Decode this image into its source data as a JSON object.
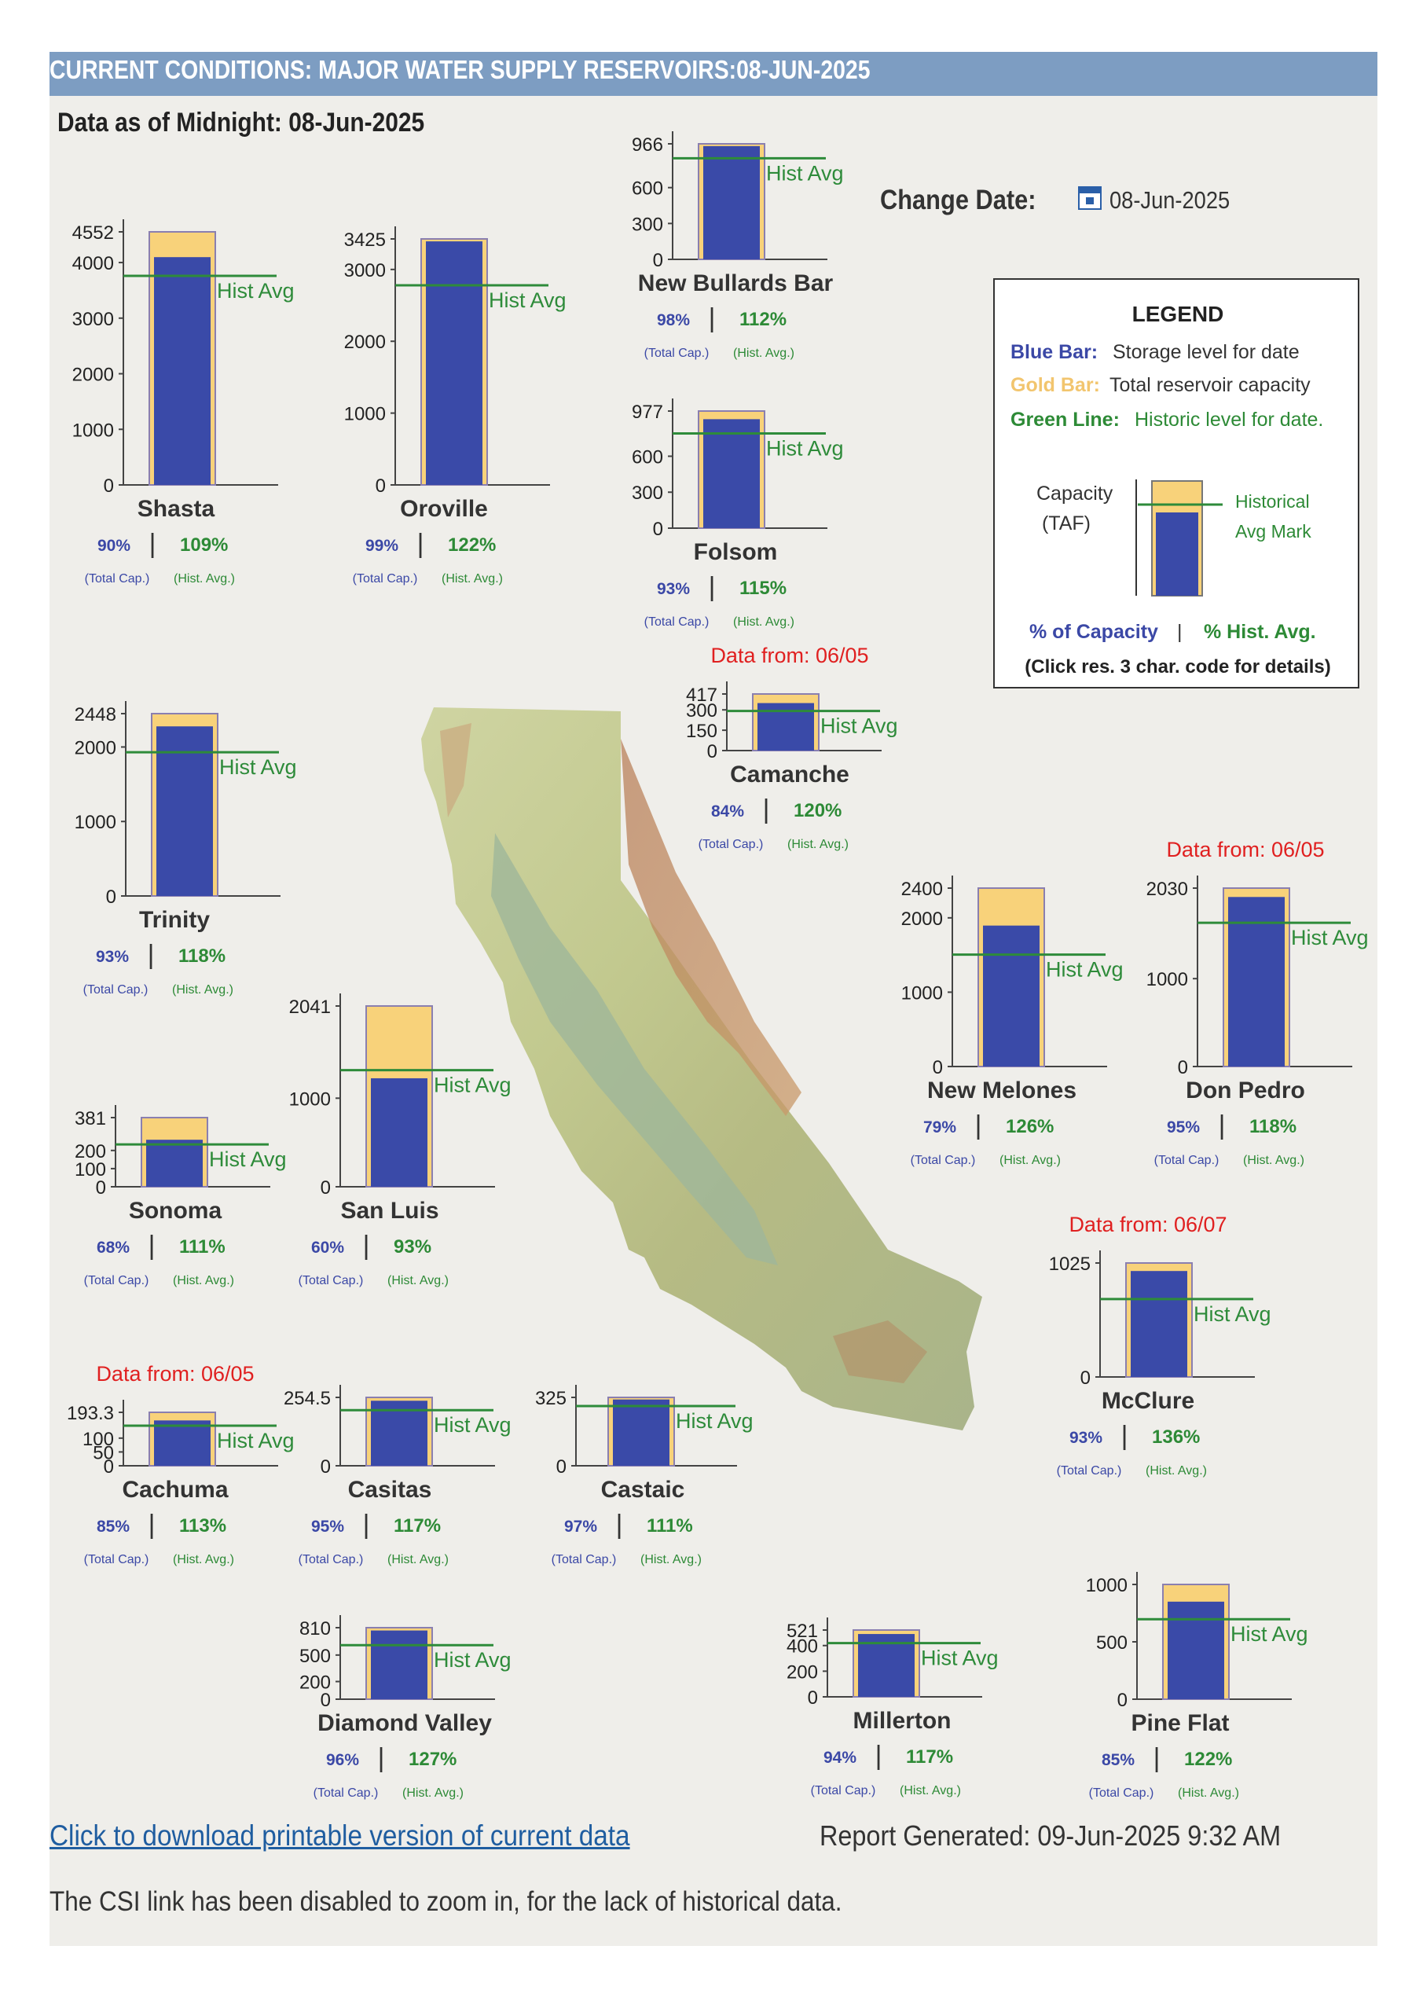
{
  "header": {
    "banner": "CURRENT CONDITIONS: MAJOR WATER SUPPLY RESERVOIRS:08-JUN-2025",
    "as_of": "Data as of Midnight: 08-Jun-2025",
    "change_date_label": "Change Date:",
    "change_date_value": "08-Jun-2025"
  },
  "colors": {
    "storage_bar": "#3a4aa8",
    "capacity_bar": "#f8d27a",
    "hist_line": "#2e8b3a",
    "capacity_pct": "#3b48a6",
    "hist_pct": "#2d8a36",
    "stale_note": "#e02020"
  },
  "legend": {
    "title": "LEGEND",
    "blue_key": "Blue Bar:",
    "blue_desc": "Storage level for date",
    "gold_key": "Gold Bar:",
    "gold_desc": "Total reservoir capacity",
    "green_key": "Green Line:",
    "green_desc": "Historic level for date.",
    "capacity_label": "Capacity",
    "taf_label": "(TAF)",
    "hist_mark_1": "Historical",
    "hist_mark_2": "Avg Mark",
    "pct_capacity": "% of Capacity",
    "sep": "|",
    "pct_hist": "% Hist. Avg.",
    "click_note": "(Click res. 3 char. code for details)"
  },
  "labels": {
    "hist_avg": "Hist Avg",
    "total_cap": "(Total Cap.)",
    "hist_avg_small": "(Hist. Avg.)",
    "sep": "|"
  },
  "chart_data": {
    "type": "bar",
    "units": "TAF",
    "series_meaning": {
      "storage": "Blue Bar",
      "capacity": "Gold Bar",
      "hist_avg": "Green Line"
    },
    "reservoirs": [
      {
        "name": "Shasta",
        "capacity": 4552,
        "storage": 4097,
        "hist_avg": 3760,
        "ticks": [
          0,
          1000,
          2000,
          3000,
          4000,
          4552
        ],
        "pct_cap": "90%",
        "pct_hist": "109%"
      },
      {
        "name": "Oroville",
        "capacity": 3425,
        "storage": 3391,
        "hist_avg": 2780,
        "ticks": [
          0,
          1000,
          2000,
          3000,
          3425
        ],
        "pct_cap": "99%",
        "pct_hist": "122%"
      },
      {
        "name": "New Bullards Bar",
        "capacity": 966,
        "storage": 947,
        "hist_avg": 845,
        "ticks": [
          0,
          300,
          600,
          966
        ],
        "pct_cap": "98%",
        "pct_hist": "112%"
      },
      {
        "name": "Folsom",
        "capacity": 977,
        "storage": 909,
        "hist_avg": 790,
        "ticks": [
          0,
          300,
          600,
          977
        ],
        "pct_cap": "93%",
        "pct_hist": "115%"
      },
      {
        "name": "Trinity",
        "capacity": 2448,
        "storage": 2277,
        "hist_avg": 1930,
        "ticks": [
          0,
          1000,
          2000,
          2448
        ],
        "pct_cap": "93%",
        "pct_hist": "118%"
      },
      {
        "name": "Camanche",
        "capacity": 417,
        "storage": 350,
        "hist_avg": 292,
        "ticks": [
          0,
          150,
          300,
          417
        ],
        "pct_cap": "84%",
        "pct_hist": "120%",
        "note": "Data from: 06/05"
      },
      {
        "name": "New Melones",
        "capacity": 2400,
        "storage": 1896,
        "hist_avg": 1505,
        "ticks": [
          0,
          1000,
          2000,
          2400
        ],
        "pct_cap": "79%",
        "pct_hist": "126%"
      },
      {
        "name": "Don Pedro",
        "capacity": 2030,
        "storage": 1929,
        "hist_avg": 1635,
        "ticks": [
          0,
          1000,
          2030
        ],
        "pct_cap": "95%",
        "pct_hist": "118%",
        "note": "Data from: 06/05"
      },
      {
        "name": "Sonoma",
        "capacity": 381,
        "storage": 259,
        "hist_avg": 233,
        "ticks": [
          0,
          100,
          200,
          381
        ],
        "pct_cap": "68%",
        "pct_hist": "111%"
      },
      {
        "name": "San Luis",
        "capacity": 2041,
        "storage": 1225,
        "hist_avg": 1317,
        "ticks": [
          0,
          1000,
          2041
        ],
        "pct_cap": "60%",
        "pct_hist": "93%"
      },
      {
        "name": "McClure",
        "capacity": 1025,
        "storage": 953,
        "hist_avg": 701,
        "ticks": [
          0,
          1025
        ],
        "pct_cap": "93%",
        "pct_hist": "136%",
        "note": "Data from: 06/07"
      },
      {
        "name": "Cachuma",
        "capacity": 193.3,
        "storage": 164,
        "hist_avg": 145,
        "ticks": [
          0,
          50,
          100,
          193.3
        ],
        "pct_cap": "85%",
        "pct_hist": "113%",
        "note": "Data from: 06/05"
      },
      {
        "name": "Casitas",
        "capacity": 254.5,
        "storage": 242,
        "hist_avg": 207,
        "ticks": [
          0,
          254.5
        ],
        "pct_cap": "95%",
        "pct_hist": "117%"
      },
      {
        "name": "Castaic",
        "capacity": 325,
        "storage": 315,
        "hist_avg": 284,
        "ticks": [
          0,
          325
        ],
        "pct_cap": "97%",
        "pct_hist": "111%"
      },
      {
        "name": "Diamond Valley",
        "capacity": 810,
        "storage": 778,
        "hist_avg": 612,
        "ticks": [
          0,
          200,
          500,
          810
        ],
        "pct_cap": "96%",
        "pct_hist": "127%"
      },
      {
        "name": "Millerton",
        "capacity": 521,
        "storage": 490,
        "hist_avg": 419,
        "ticks": [
          0,
          200,
          400,
          521
        ],
        "pct_cap": "94%",
        "pct_hist": "117%"
      },
      {
        "name": "Pine Flat",
        "capacity": 1000,
        "storage": 850,
        "hist_avg": 697,
        "ticks": [
          0,
          500,
          1000
        ],
        "pct_cap": "85%",
        "pct_hist": "122%"
      }
    ]
  },
  "footer": {
    "download_link": "Click to download printable version of current data",
    "report_generated": "Report Generated: 09-Jun-2025 9:32 AM",
    "csi_note": "The CSI link has been disabled to zoom in, for the lack of historical data."
  }
}
